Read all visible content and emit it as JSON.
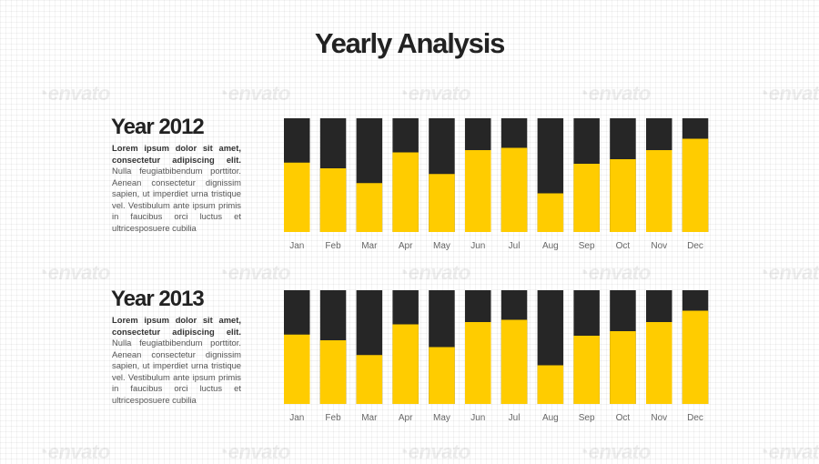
{
  "title": "Yearly Analysis",
  "watermark": "envato",
  "colors": {
    "bar_fill": "#FFCC00",
    "bar_remainder": "#262626",
    "axis_text": "#666666"
  },
  "sections": [
    {
      "heading": "Year 2012",
      "lead": "Lorem ipsum dolor sit amet, consectetur adipiscing elit.",
      "body": " Nulla feugiatbibendum porttitor. Aenean consectetur dignissim sapien, ut imperdiet urna tristique vel. Vestibulum ante ipsum primis in faucibus orci luctus et ultricesposuere cubilia"
    },
    {
      "heading": "Year 2013",
      "lead": "Lorem ipsum dolor sit amet, consectetur adipiscing elit.",
      "body": " Nulla feugiatbibendum porttitor. Aenean consectetur dignissim sapien, ut imperdiet urna tristique vel. Vestibulum ante ipsum primis in faucibus orci luctus et ultricesposuere cubilia"
    }
  ],
  "chart_data": [
    {
      "type": "bar",
      "stacked_to_full": true,
      "categories": [
        "Jan",
        "Feb",
        "Mar",
        "Apr",
        "May",
        "Jun",
        "Jul",
        "Aug",
        "Sep",
        "Oct",
        "Nov",
        "Dec"
      ],
      "values": [
        61,
        56,
        43,
        70,
        51,
        72,
        74,
        34,
        60,
        64,
        72,
        82
      ],
      "ylim": [
        0,
        100
      ]
    },
    {
      "type": "bar",
      "stacked_to_full": true,
      "categories": [
        "Jan",
        "Feb",
        "Mar",
        "Apr",
        "May",
        "Jun",
        "Jul",
        "Aug",
        "Sep",
        "Oct",
        "Nov",
        "Dec"
      ],
      "values": [
        61,
        56,
        43,
        70,
        50,
        72,
        74,
        34,
        60,
        64,
        72,
        82
      ],
      "ylim": [
        0,
        100
      ]
    }
  ]
}
